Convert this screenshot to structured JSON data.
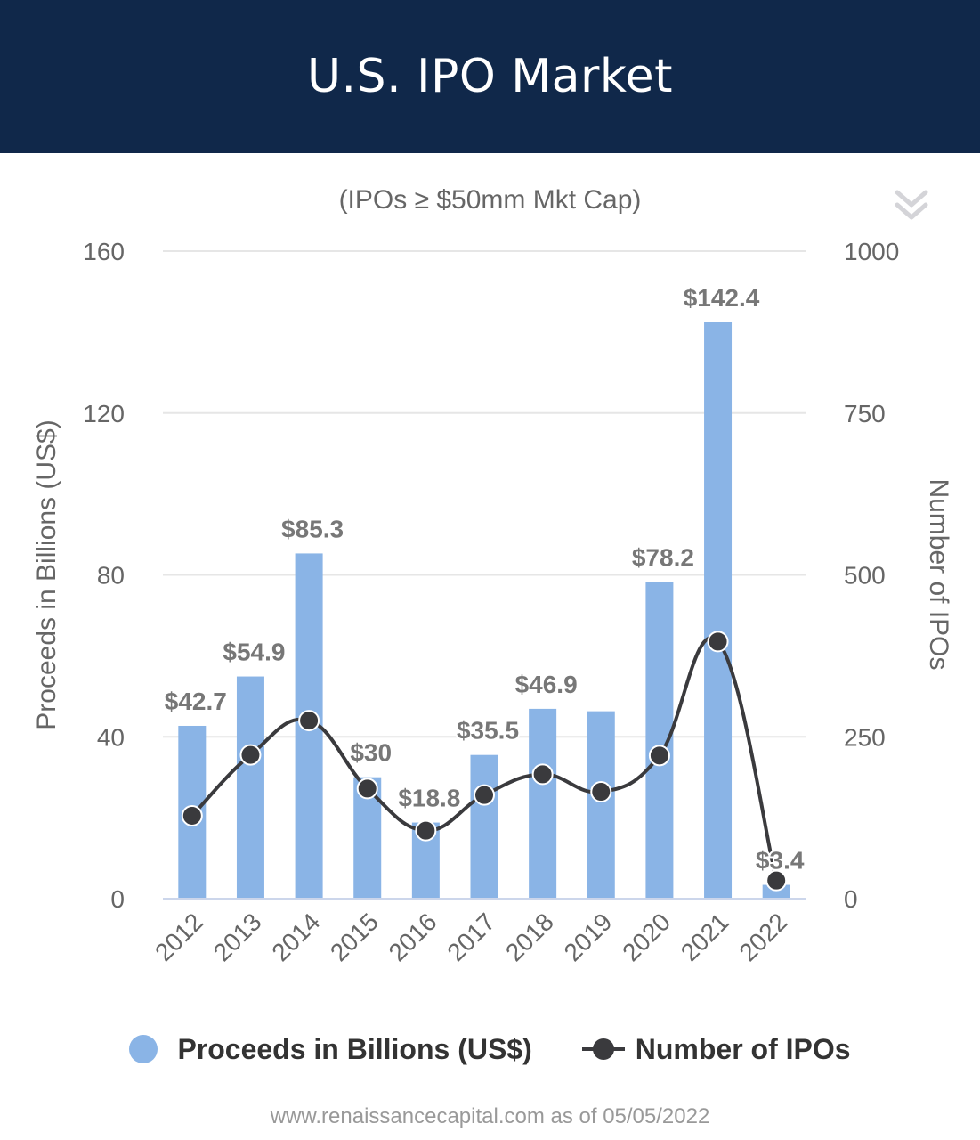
{
  "header": {
    "title": "U.S. IPO Market"
  },
  "colors": {
    "header_bg": "#10284a",
    "bar": "#8ab4e6",
    "line": "#3a3a3d",
    "grid": "#e6e6e6"
  },
  "icons": {
    "menu": "double-chevron-down-icon"
  },
  "chart_data": {
    "type": "bar",
    "title": "",
    "subtitle": "(IPOs ≥ $50mm Mkt Cap)",
    "categories": [
      "2012",
      "2013",
      "2014",
      "2015",
      "2016",
      "2017",
      "2018",
      "2019",
      "2020",
      "2021",
      "2022"
    ],
    "series": [
      {
        "name": "Proceeds in Billions (US$)",
        "type": "bar",
        "axis": "left",
        "values": [
          42.7,
          54.9,
          85.3,
          30,
          18.8,
          35.5,
          46.9,
          46.3,
          78.2,
          142.4,
          3.4
        ],
        "data_labels": [
          "$42.7",
          "$54.9",
          "$85.3",
          "$30",
          "$18.8",
          "$35.5",
          "$46.9",
          "",
          "$78.2",
          "$142.4",
          "$3.4"
        ]
      },
      {
        "name": "Number of IPOs",
        "type": "line",
        "axis": "right",
        "values": [
          128,
          222,
          275,
          170,
          105,
          160,
          192,
          165,
          221,
          397,
          28
        ]
      }
    ],
    "ylabel_left": "Proceeds in Billions (US$)",
    "ylabel_right": "Number of IPOs",
    "ylim_left": [
      0,
      160
    ],
    "yticks_left": [
      "0",
      "40",
      "80",
      "120",
      "160"
    ],
    "ylim_right": [
      0,
      1000
    ],
    "yticks_right": [
      "0",
      "250",
      "500",
      "750",
      "1000"
    ],
    "grid": true,
    "legend_position": "bottom"
  },
  "footer": {
    "source": "www.renaissancecapital.com as of 05/05/2022"
  }
}
